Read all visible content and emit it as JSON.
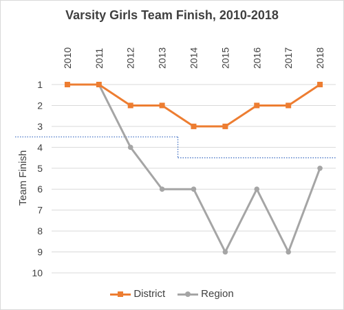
{
  "chart_data": {
    "type": "line",
    "title": "Varsity Girls Team Finish, 2010-2018",
    "xlabel": "",
    "ylabel": "Team Finish",
    "categories": [
      "2010",
      "2011",
      "2012",
      "2013",
      "2014",
      "2015",
      "2016",
      "2017",
      "2018"
    ],
    "ylim": [
      1,
      10
    ],
    "y_inverted": true,
    "y_ticks": [
      "1",
      "2",
      "3",
      "4",
      "5",
      "6",
      "7",
      "8",
      "9",
      "10"
    ],
    "x_axis_position": "top",
    "grid": true,
    "legend_position": "bottom",
    "series": [
      {
        "name": "District",
        "values": [
          1,
          1,
          2,
          2,
          3,
          3,
          2,
          2,
          1
        ],
        "color": "#ed7d31",
        "marker": "square"
      },
      {
        "name": "Region",
        "values": [
          1,
          1,
          4,
          6,
          6,
          9,
          6,
          9,
          5
        ],
        "color": "#a5a5a5",
        "marker": "circle"
      }
    ],
    "reference_lines": [
      {
        "x_from": 2010,
        "x_to": 2013.5,
        "y": 3.5,
        "color": "#4472c4",
        "style": "dotted"
      },
      {
        "x_from": 2013.5,
        "x_to": 2018,
        "y": 4.5,
        "color": "#4472c4",
        "style": "dotted"
      }
    ]
  }
}
